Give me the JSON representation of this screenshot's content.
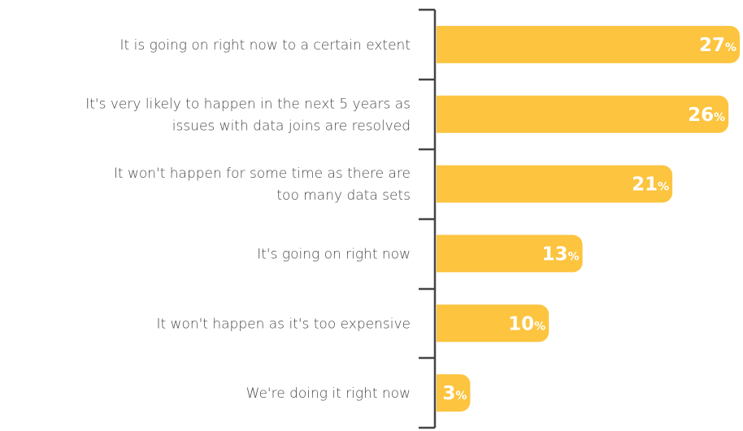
{
  "chart_data": {
    "type": "bar",
    "orientation": "horizontal",
    "categories": [
      "It is going on right now to a certain extent",
      "It's very likely to happen in the next 5 years as\nissues with data joins are resolved",
      "It won't happen for some time as there are\ntoo many data sets",
      "It's going on right now",
      "It won't happen as it's too expensive",
      "We're doing it right now"
    ],
    "values": [
      27,
      26,
      21,
      13,
      10,
      3
    ],
    "value_labels": [
      "27%",
      "26%",
      "21%",
      "13%",
      "10%",
      "3%"
    ],
    "color": "#fcc43f",
    "xlim": [
      0,
      27
    ]
  }
}
